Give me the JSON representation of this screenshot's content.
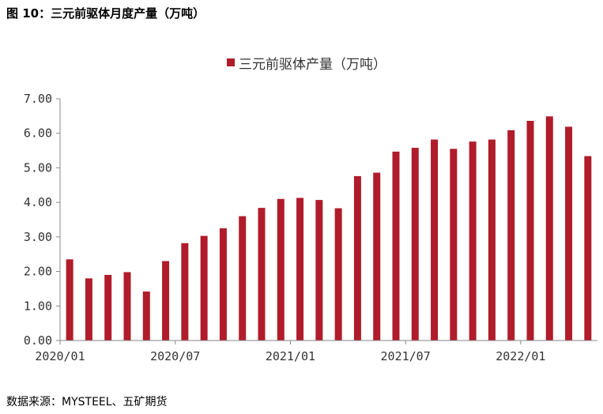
{
  "figure": {
    "title": "图 10：三元前驱体月度产量（万吨）",
    "source": "数据来源：MYSTEEL、五矿期货"
  },
  "chart_data": {
    "type": "bar",
    "legend": {
      "label": "三元前驱体产量（万吨）",
      "position": "top-center"
    },
    "color": "#b01c2a",
    "categories": [
      "2020/01",
      "2020/02",
      "2020/03",
      "2020/04",
      "2020/05",
      "2020/06",
      "2020/07",
      "2020/08",
      "2020/09",
      "2020/10",
      "2020/11",
      "2020/12",
      "2021/01",
      "2021/02",
      "2021/03",
      "2021/04",
      "2021/05",
      "2021/06",
      "2021/07",
      "2021/08",
      "2021/09",
      "2021/10",
      "2021/11",
      "2021/12",
      "2022/01",
      "2022/02",
      "2022/03",
      "2022/04"
    ],
    "values": [
      2.35,
      1.8,
      1.9,
      1.98,
      1.42,
      2.3,
      2.82,
      3.03,
      3.25,
      3.6,
      3.84,
      4.1,
      4.13,
      4.07,
      3.83,
      4.76,
      4.86,
      5.47,
      5.58,
      5.82,
      5.55,
      5.76,
      5.82,
      6.09,
      6.36,
      6.49,
      6.19,
      5.34
    ],
    "x_tick_labels": [
      "2020/01",
      "2020/07",
      "2021/01",
      "2021/07",
      "2022/01"
    ],
    "y_tick_labels": [
      "0.00",
      "1.00",
      "2.00",
      "3.00",
      "4.00",
      "5.00",
      "6.00",
      "7.00"
    ],
    "ylim": [
      0,
      7
    ],
    "grid": false
  }
}
